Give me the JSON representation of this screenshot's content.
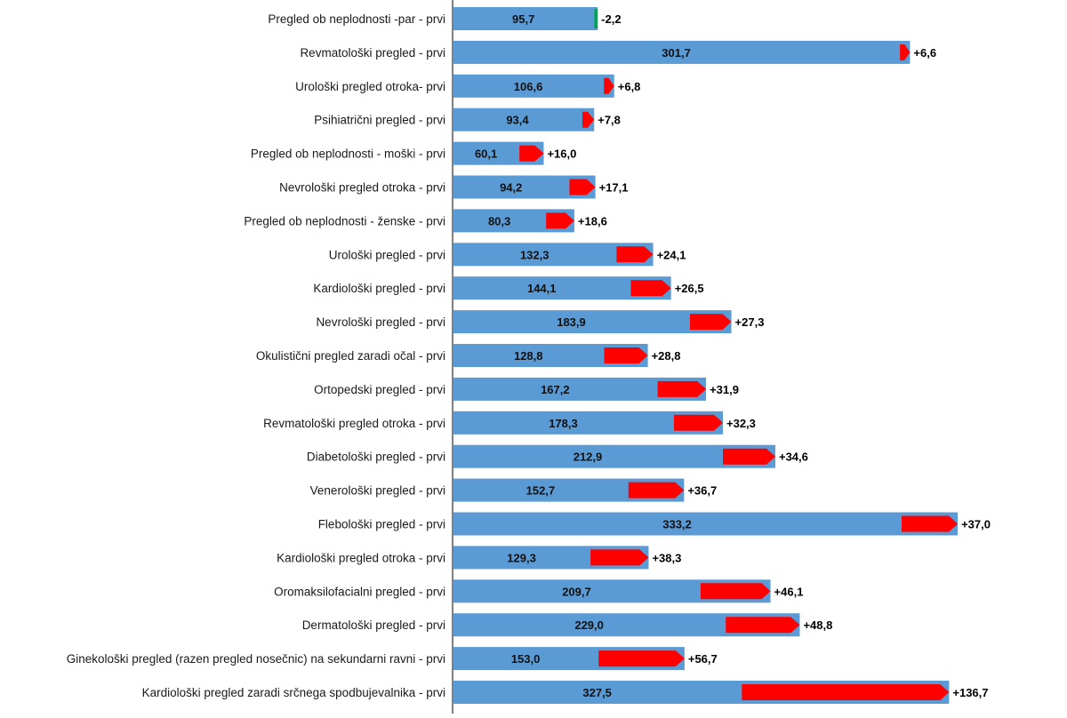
{
  "chart_data": {
    "type": "bar",
    "orientation": "horizontal",
    "colors": {
      "bar": "#5B9BD5",
      "increase": "#FF0000",
      "decrease": "#00A651",
      "axis": "#000000"
    },
    "categories": [
      "Pregled ob neplodnosti -par - prvi",
      "Revmatološki pregled - prvi",
      "Urološki pregled otroka- prvi",
      "Psihiatrični pregled - prvi",
      "Pregled ob neplodnosti - moški - prvi",
      "Nevrološki pregled otroka - prvi",
      "Pregled ob neplodnosti - ženske - prvi",
      "Urološki pregled - prvi",
      "Kardiološki pregled - prvi",
      "Nevrološki pregled - prvi",
      "Okulistični pregled zaradi očal - prvi",
      "Ortopedski pregled - prvi",
      "Revmatološki pregled otroka - prvi",
      "Diabetološki pregled - prvi",
      "Venerološki pregled - prvi",
      "Flebološki pregled - prvi",
      "Kardiološki pregled otroka - prvi",
      "Oromaksilofacialni pregled - prvi",
      "Dermatološki pregled - prvi",
      "Ginekološki pregled (razen pregled nosečnic) na sekundarni ravni - prvi",
      "Kardiološki pregled zaradi srčnega spodbujevalnika - prvi"
    ],
    "values": [
      95.7,
      301.7,
      106.6,
      93.4,
      60.1,
      94.2,
      80.3,
      132.3,
      144.1,
      183.9,
      128.8,
      167.2,
      178.3,
      212.9,
      152.7,
      333.2,
      129.3,
      209.7,
      229.0,
      153.0,
      327.5
    ],
    "value_labels": [
      "95,7",
      "301,7",
      "106,6",
      "93,4",
      "60,1",
      "94,2",
      "80,3",
      "132,3",
      "144,1",
      "183,9",
      "128,8",
      "167,2",
      "178,3",
      "212,9",
      "152,7",
      "333,2",
      "129,3",
      "209,7",
      "229,0",
      "153,0",
      "327,5"
    ],
    "changes": [
      -2.2,
      6.6,
      6.8,
      7.8,
      16.0,
      17.1,
      18.6,
      24.1,
      26.5,
      27.3,
      28.8,
      31.9,
      32.3,
      34.6,
      36.7,
      37.0,
      38.3,
      46.1,
      48.8,
      56.7,
      136.7
    ],
    "change_labels": [
      "-2,2",
      "+6,6",
      "+6,8",
      "+7,8",
      "+16,0",
      "+17,1",
      "+18,6",
      "+24,1",
      "+26,5",
      "+27,3",
      "+28,8",
      "+31,9",
      "+32,3",
      "+34,6",
      "+36,7",
      "+37,0",
      "+38,3",
      "+46,1",
      "+48,8",
      "+56,7",
      "+136,7"
    ],
    "xlim": [
      0,
      345
    ],
    "grid": false,
    "legend": "none"
  }
}
